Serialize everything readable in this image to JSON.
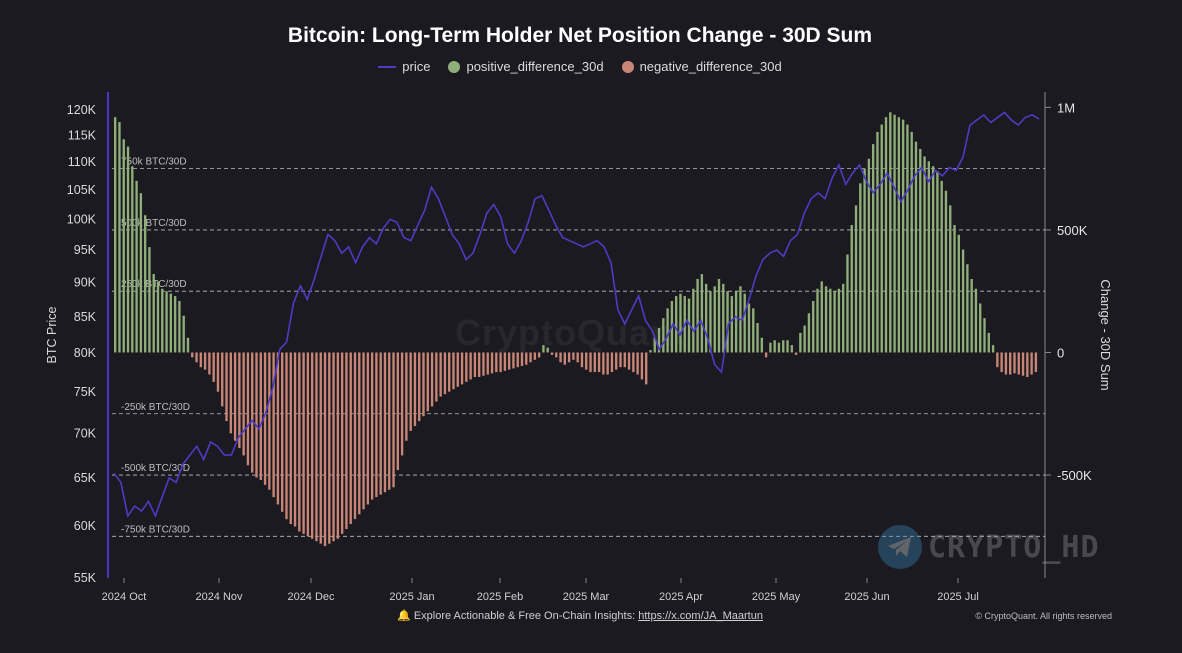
{
  "title": "Bitcoin: Long-Term Holder Net Position Change - 30D Sum",
  "legend": [
    {
      "label": "price",
      "color": "#4e3bc4",
      "kind": "line"
    },
    {
      "label": "positive_difference_30d",
      "color": "#8fae78",
      "kind": "dot"
    },
    {
      "label": "negative_difference_30d",
      "color": "#c98677",
      "kind": "dot"
    }
  ],
  "footer": {
    "text": "Explore Actionable & Free On-Chain Insights:",
    "link": "https://x.com/JA_Maartun",
    "copyright": "© CryptoQuant. All rights reserved",
    "icon": "bell-icon"
  },
  "watermarks": {
    "center": "CryptoQuant",
    "badge": "CRYPTO_HD",
    "badge_icon": "telegram-icon"
  },
  "chart_data": {
    "type": "bar+line",
    "y_left": {
      "label": "BTC Price",
      "ticks": [
        "55K",
        "60K",
        "65K",
        "70K",
        "75K",
        "80K",
        "85K",
        "90K",
        "95K",
        "100K",
        "105K",
        "110K",
        "115K",
        "120K"
      ],
      "range": [
        55000,
        122000
      ],
      "scale": "log"
    },
    "y_right": {
      "label": "Change - 30D Sum",
      "ticks": [
        "-500K",
        "0",
        "500K",
        "1M"
      ],
      "range": [
        -920000,
        1030000
      ]
    },
    "x_ticks": [
      "2024 Oct",
      "2024 Nov",
      "2024 Dec",
      "2025 Jan",
      "2025 Feb",
      "2025 Mar",
      "2025 Apr",
      "2025 May",
      "2025 Jun",
      "2025 Jul"
    ],
    "reference_lines": [
      {
        "value": 750000,
        "label": "750k BTC/30D"
      },
      {
        "value": 500000,
        "label": "500k BTC/30D"
      },
      {
        "value": 250000,
        "label": "250k BTC/30D"
      },
      {
        "value": -250000,
        "label": "-250k BTC/30D"
      },
      {
        "value": -500000,
        "label": "-500k BTC/30D"
      },
      {
        "value": -750000,
        "label": "-750k BTC/30D"
      }
    ],
    "start_date": "2024-09-26",
    "bars_30d_sum": [
      960000,
      940000,
      870000,
      840000,
      760000,
      700000,
      650000,
      560000,
      430000,
      320000,
      290000,
      260000,
      250000,
      240000,
      230000,
      210000,
      150000,
      60000,
      -20000,
      -40000,
      -60000,
      -70000,
      -90000,
      -120000,
      -160000,
      -220000,
      -280000,
      -330000,
      -360000,
      -390000,
      -420000,
      -460000,
      -490000,
      -510000,
      -520000,
      -540000,
      -560000,
      -590000,
      -620000,
      -650000,
      -680000,
      -700000,
      -710000,
      -730000,
      -740000,
      -750000,
      -760000,
      -770000,
      -780000,
      -790000,
      -780000,
      -770000,
      -760000,
      -740000,
      -720000,
      -700000,
      -680000,
      -660000,
      -640000,
      -620000,
      -600000,
      -590000,
      -580000,
      -570000,
      -560000,
      -550000,
      -480000,
      -420000,
      -360000,
      -320000,
      -300000,
      -280000,
      -260000,
      -240000,
      -220000,
      -200000,
      -180000,
      -170000,
      -160000,
      -150000,
      -140000,
      -130000,
      -120000,
      -110000,
      -100000,
      -100000,
      -95000,
      -90000,
      -85000,
      -80000,
      -80000,
      -75000,
      -70000,
      -65000,
      -60000,
      -55000,
      -50000,
      -40000,
      -30000,
      -20000,
      30000,
      20000,
      -10000,
      -20000,
      -40000,
      -50000,
      -40000,
      -30000,
      -40000,
      -60000,
      -70000,
      -80000,
      -80000,
      -80000,
      -90000,
      -90000,
      -80000,
      -70000,
      -60000,
      -60000,
      -70000,
      -80000,
      -90000,
      -110000,
      -130000,
      10000,
      60000,
      100000,
      140000,
      180000,
      210000,
      230000,
      240000,
      230000,
      220000,
      260000,
      300000,
      320000,
      280000,
      250000,
      270000,
      300000,
      280000,
      250000,
      230000,
      250000,
      270000,
      240000,
      200000,
      180000,
      120000,
      60000,
      -20000,
      40000,
      50000,
      40000,
      50000,
      50000,
      30000,
      -10000,
      80000,
      110000,
      160000,
      210000,
      260000,
      290000,
      270000,
      260000,
      250000,
      260000,
      280000,
      400000,
      520000,
      600000,
      690000,
      750000,
      790000,
      850000,
      900000,
      930000,
      960000,
      980000,
      970000,
      960000,
      950000,
      930000,
      900000,
      860000,
      830000,
      800000,
      780000,
      760000,
      740000,
      700000,
      660000,
      600000,
      520000,
      480000,
      420000,
      360000,
      300000,
      260000,
      200000,
      140000,
      80000,
      30000,
      -60000,
      -80000,
      -90000,
      -90000,
      -85000,
      -90000,
      -95000,
      -100000,
      -90000,
      -80000
    ],
    "price": [
      [
        0,
        65500
      ],
      [
        2,
        64500
      ],
      [
        4,
        61000
      ],
      [
        6,
        62000
      ],
      [
        8,
        61500
      ],
      [
        10,
        62500
      ],
      [
        12,
        61000
      ],
      [
        14,
        63000
      ],
      [
        16,
        65000
      ],
      [
        18,
        64500
      ],
      [
        20,
        66500
      ],
      [
        22,
        67500
      ],
      [
        24,
        68500
      ],
      [
        26,
        67000
      ],
      [
        28,
        69000
      ],
      [
        30,
        68500
      ],
      [
        32,
        67500
      ],
      [
        34,
        67500
      ],
      [
        36,
        69500
      ],
      [
        38,
        70500
      ],
      [
        40,
        71500
      ],
      [
        42,
        70500
      ],
      [
        44,
        72500
      ],
      [
        46,
        75500
      ],
      [
        48,
        80500
      ],
      [
        50,
        81500
      ],
      [
        52,
        87000
      ],
      [
        54,
        89500
      ],
      [
        56,
        87500
      ],
      [
        58,
        90500
      ],
      [
        60,
        94000
      ],
      [
        62,
        97500
      ],
      [
        64,
        96500
      ],
      [
        66,
        94500
      ],
      [
        68,
        95500
      ],
      [
        70,
        93000
      ],
      [
        72,
        95500
      ],
      [
        74,
        97000
      ],
      [
        76,
        96000
      ],
      [
        78,
        98500
      ],
      [
        80,
        100000
      ],
      [
        82,
        99500
      ],
      [
        84,
        97000
      ],
      [
        86,
        96500
      ],
      [
        88,
        99000
      ],
      [
        90,
        101500
      ],
      [
        92,
        105500
      ],
      [
        94,
        103500
      ],
      [
        96,
        100500
      ],
      [
        98,
        97500
      ],
      [
        100,
        96000
      ],
      [
        102,
        93500
      ],
      [
        104,
        94500
      ],
      [
        106,
        97500
      ],
      [
        108,
        101000
      ],
      [
        110,
        102500
      ],
      [
        112,
        100500
      ],
      [
        114,
        96000
      ],
      [
        116,
        94500
      ],
      [
        118,
        96500
      ],
      [
        120,
        99500
      ],
      [
        122,
        103500
      ],
      [
        124,
        104000
      ],
      [
        126,
        101500
      ],
      [
        128,
        99000
      ],
      [
        130,
        97000
      ],
      [
        132,
        96500
      ],
      [
        134,
        96000
      ],
      [
        136,
        95500
      ],
      [
        138,
        96000
      ],
      [
        140,
        96500
      ],
      [
        142,
        95500
      ],
      [
        144,
        93000
      ],
      [
        146,
        86000
      ],
      [
        148,
        84000
      ],
      [
        150,
        86000
      ],
      [
        152,
        88000
      ],
      [
        154,
        84500
      ],
      [
        156,
        83000
      ],
      [
        158,
        80500
      ],
      [
        160,
        82000
      ],
      [
        162,
        84000
      ],
      [
        164,
        82500
      ],
      [
        166,
        84500
      ],
      [
        168,
        83000
      ],
      [
        170,
        84500
      ],
      [
        172,
        82000
      ],
      [
        174,
        78500
      ],
      [
        176,
        77500
      ],
      [
        178,
        84000
      ],
      [
        180,
        85000
      ],
      [
        182,
        84500
      ],
      [
        184,
        87500
      ],
      [
        186,
        91000
      ],
      [
        188,
        93500
      ],
      [
        190,
        94500
      ],
      [
        192,
        95000
      ],
      [
        194,
        94000
      ],
      [
        196,
        96500
      ],
      [
        198,
        97500
      ],
      [
        200,
        101000
      ],
      [
        202,
        103500
      ],
      [
        204,
        104500
      ],
      [
        206,
        103500
      ],
      [
        208,
        107000
      ],
      [
        210,
        109500
      ],
      [
        212,
        106000
      ],
      [
        214,
        108000
      ],
      [
        216,
        109500
      ],
      [
        218,
        106500
      ],
      [
        220,
        104500
      ],
      [
        222,
        106000
      ],
      [
        224,
        108000
      ],
      [
        226,
        105500
      ],
      [
        228,
        103000
      ],
      [
        230,
        105000
      ],
      [
        232,
        107500
      ],
      [
        234,
        109000
      ],
      [
        236,
        106500
      ],
      [
        238,
        108500
      ],
      [
        240,
        107500
      ],
      [
        242,
        109000
      ],
      [
        244,
        108500
      ],
      [
        246,
        111000
      ],
      [
        248,
        117000
      ],
      [
        250,
        118000
      ],
      [
        252,
        119000
      ],
      [
        254,
        117500
      ],
      [
        256,
        118500
      ],
      [
        258,
        119500
      ],
      [
        260,
        118000
      ],
      [
        262,
        117000
      ],
      [
        264,
        118500
      ],
      [
        266,
        119000
      ],
      [
        268,
        118200
      ]
    ],
    "price_days_total": 268
  }
}
